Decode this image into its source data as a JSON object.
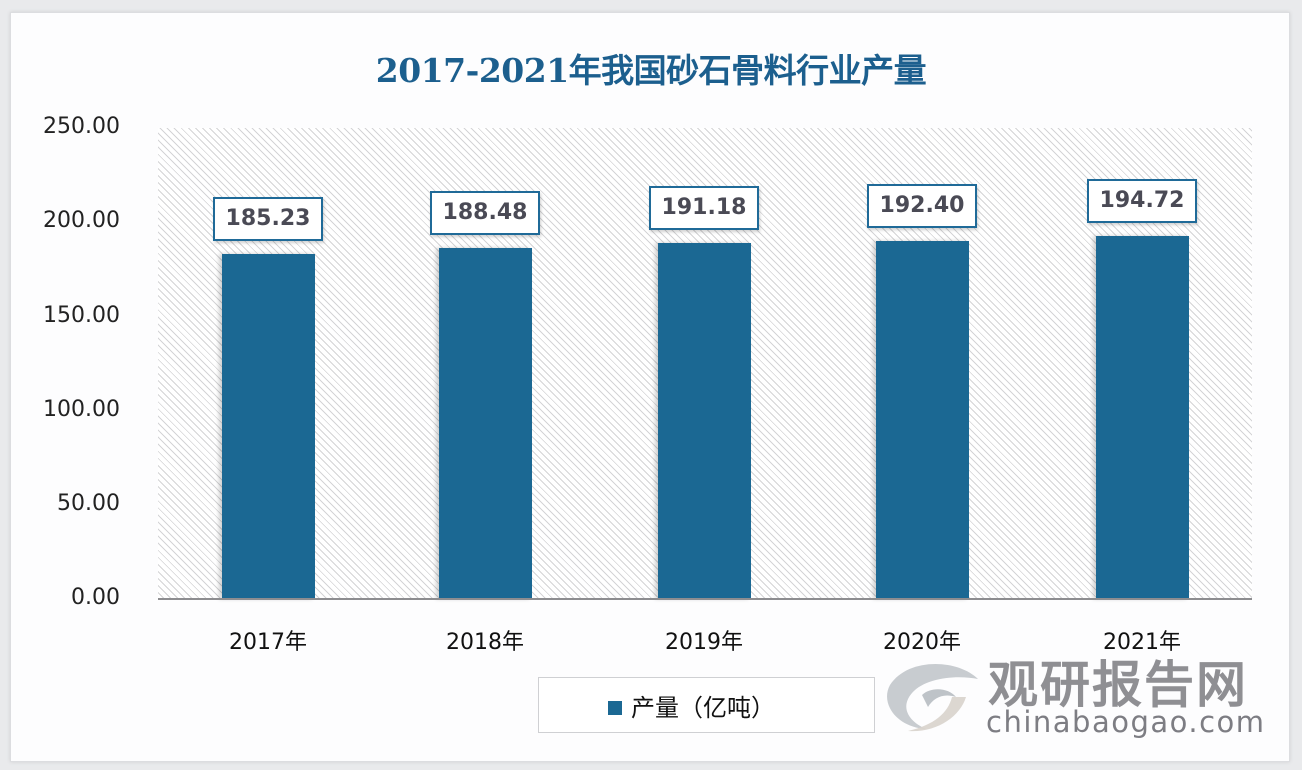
{
  "chart_data": {
    "type": "bar",
    "title": "2017-2021年我国砂石骨料行业产量",
    "categories": [
      "2017年",
      "2018年",
      "2019年",
      "2020年",
      "2021年"
    ],
    "series": [
      {
        "name": "产量（亿吨）",
        "values": [
          185.23,
          188.48,
          191.18,
          192.4,
          194.72
        ],
        "color": "#1b6893"
      }
    ],
    "data_labels": [
      "185.23",
      "188.48",
      "191.18",
      "192.40",
      "194.72"
    ],
    "xlabel": "",
    "ylabel": "",
    "ylim": [
      0,
      250
    ],
    "yticks": [
      "0.00",
      "50.00",
      "100.00",
      "150.00",
      "200.00",
      "250.00"
    ],
    "grid": false,
    "background_pattern": "diagonal-hatch",
    "legend_position": "bottom"
  },
  "legend": {
    "label": "产量（亿吨）"
  },
  "watermark": {
    "cn": "观研报告网",
    "en": "chinabaogao.com"
  }
}
